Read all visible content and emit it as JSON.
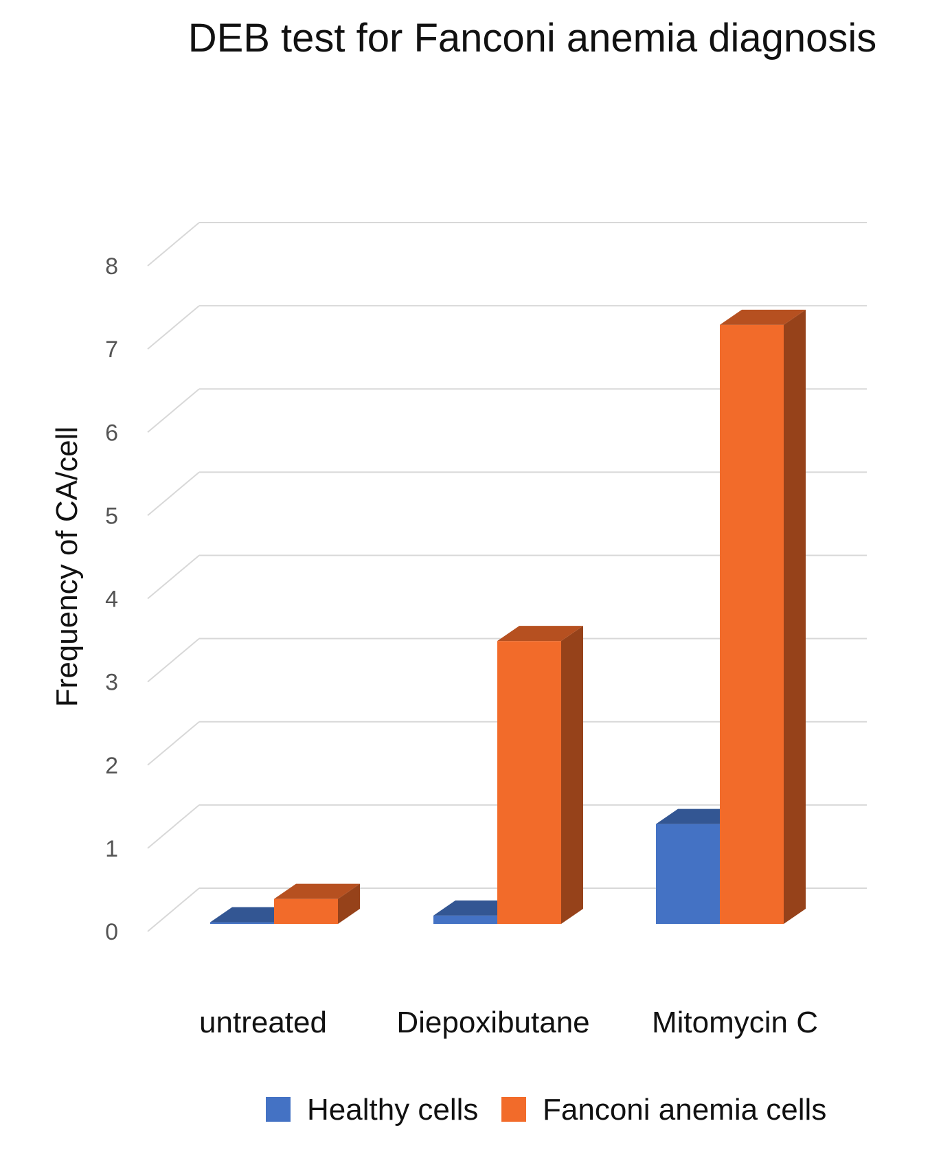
{
  "chart_data": {
    "type": "bar",
    "title": "DEB test for Fanconi anemia diagnosis",
    "xlabel": "",
    "ylabel": "Frequency of CA/cell",
    "categories": [
      "untreated",
      "Diepoxibutane",
      "Mitomycin C"
    ],
    "series": [
      {
        "name": "Healthy cells",
        "values": [
          0.02,
          0.1,
          1.2
        ],
        "color": "#4472C4"
      },
      {
        "name": "Fanconi anemia cells",
        "values": [
          0.3,
          3.4,
          7.2
        ],
        "color": "#F26B2A"
      }
    ],
    "ylim": [
      0,
      8
    ],
    "yticks": [
      "0",
      "1",
      "2",
      "3",
      "4",
      "5",
      "6",
      "7",
      "8"
    ],
    "grid": true,
    "style_3d": true,
    "legend_position": "bottom"
  }
}
